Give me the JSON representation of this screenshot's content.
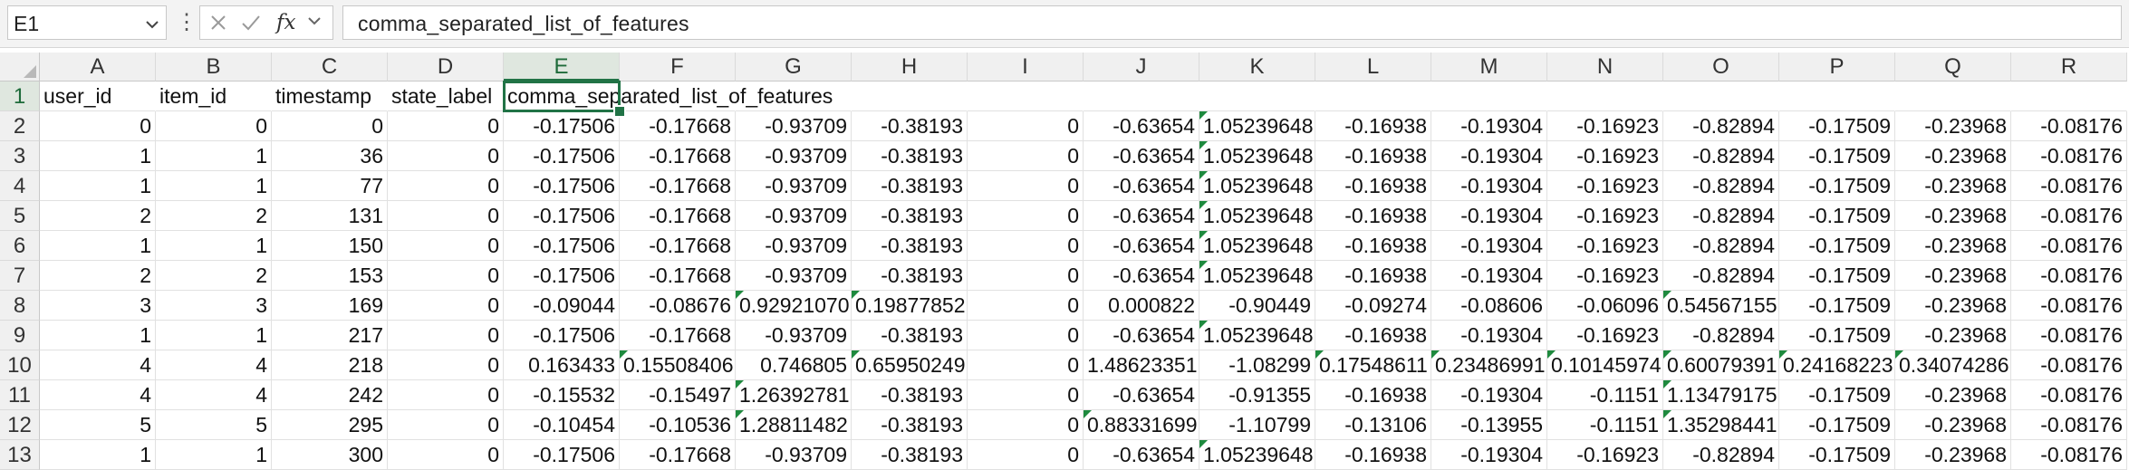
{
  "formula_bar": {
    "name_box": "E1",
    "formula": "comma_separated_list_of_features",
    "icons": [
      "chevron-down-icon",
      "more-vertical-icon",
      "cancel-icon",
      "confirm-icon",
      "function-icon"
    ]
  },
  "selected_cell": "E1",
  "accent_color": "#217346",
  "columns": [
    "A",
    "B",
    "C",
    "D",
    "E",
    "F",
    "G",
    "H",
    "I",
    "J",
    "K",
    "L",
    "M",
    "N",
    "O",
    "P",
    "Q",
    "R"
  ],
  "rows": [
    {
      "n": "1",
      "cells": [
        "user_id",
        "item_id",
        "timestamp",
        "state_label",
        "comma_separated_list_of_features",
        "",
        "",
        "",
        "",
        "",
        "",
        "",
        "",
        "",
        "",
        "",
        "",
        ""
      ]
    },
    {
      "n": "2",
      "cells": [
        "0",
        "0",
        "0",
        "0",
        "-0.17506",
        "-0.17668",
        "-0.93709",
        "-0.38193",
        "0",
        "-0.63654",
        "1.05239648",
        "-0.16938",
        "-0.19304",
        "-0.16923",
        "-0.82894",
        "-0.17509",
        "-0.23968",
        "-0.08176"
      ]
    },
    {
      "n": "3",
      "cells": [
        "1",
        "1",
        "36",
        "0",
        "-0.17506",
        "-0.17668",
        "-0.93709",
        "-0.38193",
        "0",
        "-0.63654",
        "1.05239648",
        "-0.16938",
        "-0.19304",
        "-0.16923",
        "-0.82894",
        "-0.17509",
        "-0.23968",
        "-0.08176"
      ]
    },
    {
      "n": "4",
      "cells": [
        "1",
        "1",
        "77",
        "0",
        "-0.17506",
        "-0.17668",
        "-0.93709",
        "-0.38193",
        "0",
        "-0.63654",
        "1.05239648",
        "-0.16938",
        "-0.19304",
        "-0.16923",
        "-0.82894",
        "-0.17509",
        "-0.23968",
        "-0.08176"
      ]
    },
    {
      "n": "5",
      "cells": [
        "2",
        "2",
        "131",
        "0",
        "-0.17506",
        "-0.17668",
        "-0.93709",
        "-0.38193",
        "0",
        "-0.63654",
        "1.05239648",
        "-0.16938",
        "-0.19304",
        "-0.16923",
        "-0.82894",
        "-0.17509",
        "-0.23968",
        "-0.08176"
      ]
    },
    {
      "n": "6",
      "cells": [
        "1",
        "1",
        "150",
        "0",
        "-0.17506",
        "-0.17668",
        "-0.93709",
        "-0.38193",
        "0",
        "-0.63654",
        "1.05239648",
        "-0.16938",
        "-0.19304",
        "-0.16923",
        "-0.82894",
        "-0.17509",
        "-0.23968",
        "-0.08176"
      ]
    },
    {
      "n": "7",
      "cells": [
        "2",
        "2",
        "153",
        "0",
        "-0.17506",
        "-0.17668",
        "-0.93709",
        "-0.38193",
        "0",
        "-0.63654",
        "1.05239648",
        "-0.16938",
        "-0.19304",
        "-0.16923",
        "-0.82894",
        "-0.17509",
        "-0.23968",
        "-0.08176"
      ]
    },
    {
      "n": "8",
      "cells": [
        "3",
        "3",
        "169",
        "0",
        "-0.09044",
        "-0.08676",
        "0.92921070",
        "0.19877852",
        "0",
        "0.000822",
        "-0.90449",
        "-0.09274",
        "-0.08606",
        "-0.06096",
        "0.54567155",
        "-0.17509",
        "-0.23968",
        "-0.08176"
      ]
    },
    {
      "n": "9",
      "cells": [
        "1",
        "1",
        "217",
        "0",
        "-0.17506",
        "-0.17668",
        "-0.93709",
        "-0.38193",
        "0",
        "-0.63654",
        "1.05239648",
        "-0.16938",
        "-0.19304",
        "-0.16923",
        "-0.82894",
        "-0.17509",
        "-0.23968",
        "-0.08176"
      ]
    },
    {
      "n": "10",
      "cells": [
        "4",
        "4",
        "218",
        "0",
        "0.163433",
        "0.15508406",
        "0.746805",
        "0.65950249",
        "0",
        "1.48623351",
        "-1.08299",
        "0.17548611",
        "0.23486991",
        "0.10145974",
        "0.60079391",
        "0.24168223",
        "0.34074286",
        "-0.08176"
      ]
    },
    {
      "n": "11",
      "cells": [
        "4",
        "4",
        "242",
        "0",
        "-0.15532",
        "-0.15497",
        "1.26392781",
        "-0.38193",
        "0",
        "-0.63654",
        "-0.91355",
        "-0.16938",
        "-0.19304",
        "-0.1151",
        "1.13479175",
        "-0.17509",
        "-0.23968",
        "-0.08176"
      ]
    },
    {
      "n": "12",
      "cells": [
        "5",
        "5",
        "295",
        "0",
        "-0.10454",
        "-0.10536",
        "1.28811482",
        "-0.38193",
        "0",
        "0.88331699",
        "-1.10799",
        "-0.13106",
        "-0.13955",
        "-0.1151",
        "1.35298441",
        "-0.17509",
        "-0.23968",
        "-0.08176"
      ]
    },
    {
      "n": "13",
      "cells": [
        "1",
        "1",
        "300",
        "0",
        "-0.17506",
        "-0.17668",
        "-0.93709",
        "-0.38193",
        "0",
        "-0.63654",
        "1.05239648",
        "-0.16938",
        "-0.19304",
        "-0.16923",
        "-0.82894",
        "-0.17509",
        "-0.23968",
        "-0.08176"
      ]
    }
  ]
}
